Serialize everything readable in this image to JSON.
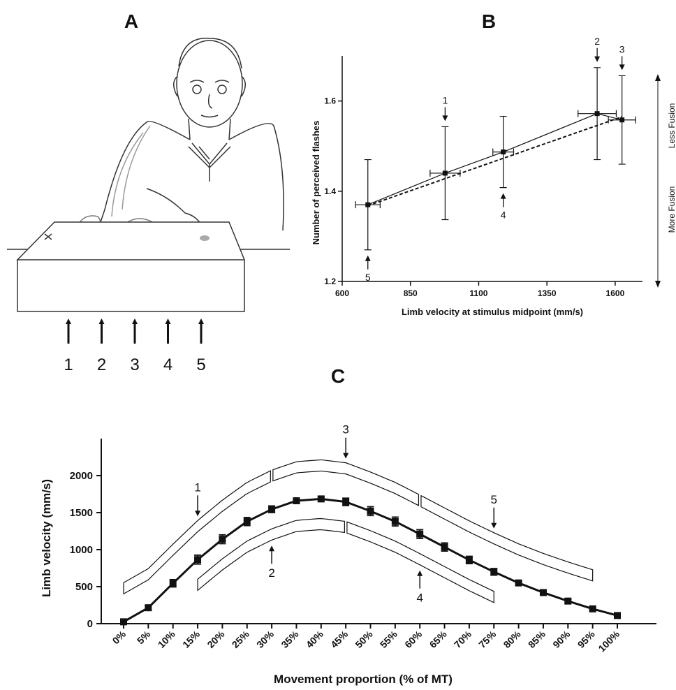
{
  "illustration": {
    "label": "A",
    "numbers": [
      "1",
      "2",
      "3",
      "4",
      "5"
    ]
  },
  "chart_data": [
    {
      "type": "errorscatter",
      "title": "B",
      "x_label": "Limb velocity at stimulus midpoint (mm/s)",
      "y_label": "Number of perceived flashes",
      "x": [
        694,
        977,
        1190,
        1534,
        1625
      ],
      "xerr": [
        45,
        55,
        38,
        70,
        50
      ],
      "values": [
        1.37,
        1.44,
        1.487,
        1.572,
        1.558
      ],
      "yerr": [
        0.1,
        0.103,
        0.079,
        0.102,
        0.098
      ],
      "point_labels": [
        "5",
        "1",
        "4",
        "2",
        "3"
      ],
      "fit": {
        "x": [
          694,
          1625
        ],
        "values": [
          1.368,
          1.565
        ]
      },
      "side_labels": [
        "Less  Fusion",
        "More  Fusion"
      ],
      "color": "#111111",
      "xlim": [
        600,
        1700
      ],
      "xticks": [
        600,
        850,
        1100,
        1350,
        1600
      ],
      "ylim": [
        1.2,
        1.7
      ],
      "yticks": [
        1.2,
        1.4,
        1.6
      ]
    },
    {
      "type": "errorline",
      "title": "C",
      "x_label": "Movement proportion (% of MT)",
      "y_label": "Limb velocity (mm/s)",
      "categories": [
        "0%",
        "5%",
        "10%",
        "15%",
        "20%",
        "25%",
        "30%",
        "35%",
        "40%",
        "45%",
        "50%",
        "55%",
        "60%",
        "65%",
        "70%",
        "75%",
        "80%",
        "85%",
        "90%",
        "95%",
        "100%"
      ],
      "values": [
        25,
        215,
        545,
        865,
        1140,
        1380,
        1545,
        1660,
        1685,
        1645,
        1520,
        1380,
        1210,
        1035,
        860,
        700,
        550,
        420,
        305,
        200,
        110
      ],
      "errors": [
        20,
        30,
        50,
        60,
        60,
        55,
        45,
        30,
        30,
        50,
        60,
        60,
        60,
        55,
        50,
        45,
        25,
        25,
        25,
        25,
        20
      ],
      "annotations": [
        "1",
        "2",
        "3",
        "4",
        "5"
      ],
      "color": "#111111",
      "ylim": [
        0,
        2500
      ],
      "yticks": [
        0,
        500,
        1000,
        1500,
        2000
      ]
    }
  ]
}
